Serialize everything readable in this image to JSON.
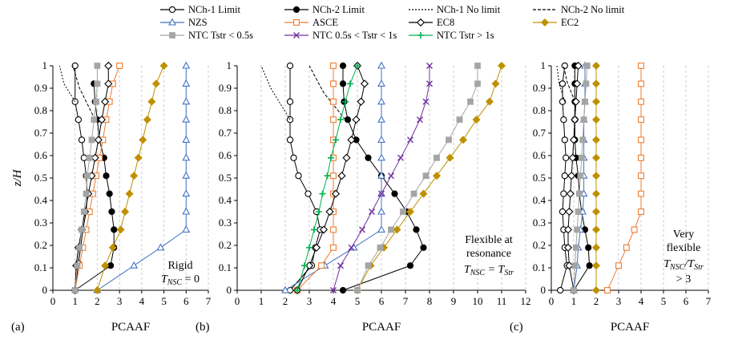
{
  "legend": [
    {
      "label": "NCh-1 Limit",
      "color": "#000000",
      "marker": "circle-open",
      "dash": ""
    },
    {
      "label": "NCh-2 Limit",
      "color": "#000000",
      "marker": "circle-filled",
      "dash": ""
    },
    {
      "label": "NCh-1 No limit",
      "color": "#000000",
      "marker": "none",
      "dash": "2,2"
    },
    {
      "label": "NCh-2 No limit",
      "color": "#000000",
      "marker": "none",
      "dash": "4,2"
    },
    {
      "label": "NZS",
      "color": "#4472c4",
      "marker": "triangle-open",
      "dash": ""
    },
    {
      "label": "ASCE",
      "color": "#ed7d31",
      "marker": "square-open",
      "dash": ""
    },
    {
      "label": "EC8",
      "color": "#000000",
      "marker": "diamond-open",
      "dash": ""
    },
    {
      "label": "EC2",
      "color": "#bf9000",
      "marker": "diamond-filled",
      "dash": ""
    },
    {
      "label": "NTC Tstr < 0.5s",
      "color": "#a5a5a5",
      "marker": "square-filled",
      "dash": ""
    },
    {
      "label": "NTC 0.5s < Tstr < 1s",
      "color": "#7030a0",
      "marker": "x",
      "dash": ""
    },
    {
      "label": "NTC Tstr > 1s",
      "color": "#00b050",
      "marker": "plus",
      "dash": ""
    }
  ],
  "ylabel": "z/H",
  "chart_data": [
    {
      "type": "line",
      "panel_label": "(a)",
      "xlabel": "PCAAF",
      "xlim": [
        0,
        7
      ],
      "xticks": [
        0,
        1,
        2,
        3,
        4,
        5,
        6,
        7
      ],
      "ylim": [
        0,
        1
      ],
      "yticks": [
        0,
        0.1,
        0.2,
        0.3,
        0.4,
        0.5,
        0.6,
        0.7,
        0.8,
        0.9,
        1
      ],
      "grid": "vertical dashed",
      "annotation": {
        "line1": "Rigid",
        "line2_prefix": "T",
        "line2_sub": "NSC",
        "line2_suffix": " = 0"
      },
      "series": [
        {
          "name": "NCh-1 Limit",
          "x": [
            1.0,
            1.15,
            1.25,
            1.35,
            1.5,
            1.55,
            1.5,
            1.4,
            1.3,
            1.15,
            1.0,
            1.0
          ],
          "y": [
            0,
            0.12,
            0.19,
            0.27,
            0.35,
            0.43,
            0.51,
            0.59,
            0.67,
            0.76,
            0.84,
            1.0
          ]
        },
        {
          "name": "NCh-2 Limit",
          "x": [
            1.0,
            2.6,
            2.75,
            2.75,
            2.65,
            2.55,
            2.4,
            2.3,
            2.1,
            2.0,
            1.9,
            1.85
          ],
          "y": [
            0,
            0.11,
            0.19,
            0.27,
            0.35,
            0.43,
            0.51,
            0.59,
            0.67,
            0.76,
            0.84,
            0.92
          ]
        },
        {
          "name": "NCh-1 No limit",
          "x": [
            1.0,
            0.5,
            0.3
          ],
          "y": [
            0.84,
            0.92,
            1.0
          ]
        },
        {
          "name": "NCh-2 No limit",
          "x": [
            1.9,
            1.2,
            0.9
          ],
          "y": [
            0.76,
            0.9,
            1.0
          ]
        },
        {
          "name": "NZS",
          "x": [
            2.0,
            3.65,
            4.85,
            6.0,
            6.0,
            6.0,
            6.0,
            6.0,
            6.0,
            6.0,
            6.0,
            6.0,
            6.0
          ],
          "y": [
            0,
            0.11,
            0.19,
            0.27,
            0.35,
            0.43,
            0.51,
            0.59,
            0.67,
            0.76,
            0.84,
            0.92,
            1.0
          ]
        },
        {
          "name": "ASCE",
          "x": [
            1.0,
            1.2,
            1.35,
            1.5,
            1.65,
            1.8,
            1.95,
            2.1,
            2.25,
            2.4,
            2.55,
            2.7,
            3.0
          ],
          "y": [
            0,
            0.11,
            0.19,
            0.27,
            0.35,
            0.43,
            0.51,
            0.59,
            0.67,
            0.76,
            0.84,
            0.92,
            1.0
          ]
        },
        {
          "name": "EC8",
          "x": [
            1.0,
            1.05,
            1.15,
            1.3,
            1.45,
            1.6,
            1.75,
            1.9,
            2.05,
            2.2,
            2.35,
            2.5,
            2.5
          ],
          "y": [
            0,
            0.11,
            0.19,
            0.27,
            0.35,
            0.43,
            0.51,
            0.59,
            0.67,
            0.76,
            0.84,
            0.92,
            1.0
          ]
        },
        {
          "name": "EC2",
          "x": [
            2.0,
            2.35,
            2.7,
            3.05,
            3.25,
            3.45,
            3.65,
            3.85,
            4.05,
            4.25,
            4.45,
            4.65,
            5.0
          ],
          "y": [
            0,
            0.11,
            0.19,
            0.27,
            0.35,
            0.43,
            0.51,
            0.59,
            0.67,
            0.76,
            0.84,
            0.92,
            1.0
          ]
        },
        {
          "name": "NTC Tstr < 0.5s",
          "x": [
            1.0,
            1.1,
            1.2,
            1.3,
            1.4,
            1.5,
            1.55,
            1.65,
            1.75,
            1.85,
            1.95,
            2.0,
            2.0
          ],
          "y": [
            0,
            0.11,
            0.19,
            0.27,
            0.35,
            0.43,
            0.51,
            0.59,
            0.67,
            0.76,
            0.84,
            0.92,
            1.0
          ]
        }
      ]
    },
    {
      "type": "line",
      "panel_label": "(b)",
      "xlabel": "PCAAF",
      "xlim": [
        0,
        12
      ],
      "xticks": [
        0,
        1,
        2,
        3,
        4,
        5,
        6,
        7,
        8,
        9,
        10,
        11,
        12
      ],
      "ylim": [
        0,
        1
      ],
      "yticks": [
        0,
        0.1,
        0.2,
        0.3,
        0.4,
        0.5,
        0.6,
        0.7,
        0.8,
        0.9,
        1
      ],
      "grid": "vertical dashed",
      "annotation": {
        "line1": "Flexible at",
        "line1b": "resonance",
        "line2_prefix": "T",
        "line2_sub": "NSC",
        "line2_suffix": " = T",
        "line2_sub2": "Str"
      },
      "series": [
        {
          "name": "NCh-1 Limit",
          "x": [
            2.2,
            3.1,
            3.25,
            3.45,
            3.3,
            2.95,
            2.55,
            2.35,
            2.2,
            2.2,
            2.2,
            2.2
          ],
          "y": [
            0,
            0.11,
            0.19,
            0.27,
            0.35,
            0.43,
            0.51,
            0.59,
            0.67,
            0.76,
            0.84,
            1.0
          ]
        },
        {
          "name": "NCh-2 Limit",
          "x": [
            4.4,
            7.2,
            7.75,
            7.45,
            7.05,
            6.55,
            6.0,
            5.45,
            4.95,
            4.6,
            4.45,
            4.4,
            4.4
          ],
          "y": [
            0,
            0.11,
            0.19,
            0.27,
            0.35,
            0.43,
            0.51,
            0.59,
            0.67,
            0.76,
            0.84,
            0.92,
            1.0
          ]
        },
        {
          "name": "NCh-1 No limit",
          "x": [
            2.2,
            1.4,
            1.0
          ],
          "y": [
            0.76,
            0.9,
            1.0
          ]
        },
        {
          "name": "NCh-2 No limit",
          "x": [
            4.5,
            3.6,
            3.0
          ],
          "y": [
            0.76,
            0.88,
            1.0
          ]
        },
        {
          "name": "NZS",
          "x": [
            2.0,
            3.65,
            4.85,
            6.0,
            6.0,
            6.0,
            6.0,
            6.0,
            6.0,
            6.0,
            6.0,
            6.0,
            6.0
          ],
          "y": [
            0,
            0.11,
            0.19,
            0.27,
            0.35,
            0.43,
            0.51,
            0.59,
            0.67,
            0.76,
            0.84,
            0.92,
            1.0
          ]
        },
        {
          "name": "ASCE",
          "x": [
            2.5,
            3.5,
            4.0,
            4.0,
            4.0,
            4.0,
            4.0,
            4.0,
            4.0,
            4.0,
            4.0,
            4.0,
            4.0
          ],
          "y": [
            0,
            0.11,
            0.19,
            0.27,
            0.35,
            0.43,
            0.51,
            0.59,
            0.67,
            0.76,
            0.84,
            0.92,
            1.0
          ]
        },
        {
          "name": "EC8",
          "x": [
            2.5,
            3.0,
            3.3,
            3.6,
            3.85,
            4.1,
            4.35,
            4.55,
            4.75,
            4.95,
            5.15,
            5.3,
            5.0
          ],
          "y": [
            0,
            0.11,
            0.19,
            0.27,
            0.35,
            0.43,
            0.51,
            0.59,
            0.67,
            0.76,
            0.84,
            0.92,
            1.0
          ]
        },
        {
          "name": "EC2",
          "x": [
            5.0,
            5.55,
            6.1,
            6.65,
            7.2,
            7.75,
            8.3,
            8.85,
            9.4,
            9.95,
            10.5,
            10.75,
            11.0
          ],
          "y": [
            0,
            0.11,
            0.19,
            0.27,
            0.35,
            0.43,
            0.51,
            0.59,
            0.67,
            0.76,
            0.84,
            0.92,
            1.0
          ]
        },
        {
          "name": "NTC Tstr < 0.5s",
          "x": [
            5.0,
            5.45,
            5.95,
            6.4,
            6.9,
            7.35,
            7.85,
            8.3,
            8.8,
            9.25,
            9.7,
            10.0,
            10.0
          ],
          "y": [
            0,
            0.11,
            0.19,
            0.27,
            0.35,
            0.43,
            0.51,
            0.59,
            0.67,
            0.76,
            0.84,
            0.92,
            1.0
          ]
        },
        {
          "name": "NTC 0.5s < Tstr < 1s",
          "x": [
            4.0,
            4.3,
            4.75,
            5.2,
            5.6,
            6.0,
            6.4,
            6.8,
            7.2,
            7.6,
            7.85,
            8.0,
            8.0
          ],
          "y": [
            0,
            0.11,
            0.19,
            0.27,
            0.35,
            0.43,
            0.51,
            0.59,
            0.67,
            0.76,
            0.84,
            0.92,
            1.0
          ]
        },
        {
          "name": "NTC Tstr > 1s",
          "x": [
            2.5,
            2.8,
            3.0,
            3.2,
            3.4,
            3.55,
            3.75,
            3.9,
            4.1,
            4.3,
            4.5,
            4.7,
            5.0
          ],
          "y": [
            0,
            0.11,
            0.19,
            0.27,
            0.35,
            0.43,
            0.51,
            0.59,
            0.67,
            0.76,
            0.84,
            0.92,
            1.0
          ]
        }
      ]
    },
    {
      "type": "line",
      "panel_label": "(c)",
      "xlabel": "PCAAF",
      "xlim": [
        0,
        7
      ],
      "xticks": [
        0,
        1,
        2,
        3,
        4,
        5,
        6,
        7
      ],
      "ylim": [
        0,
        1
      ],
      "yticks": [
        0,
        0.1,
        0.2,
        0.3,
        0.4,
        0.5,
        0.6,
        0.7,
        0.8,
        0.9,
        1
      ],
      "grid": "vertical dashed",
      "annotation": {
        "line1": "Very",
        "line1b": "flexible",
        "line2_prefix": "T",
        "line2_sub": "NSC",
        "line2_suffix": "/T",
        "line2_sub2": "Str",
        "line3": "> 3"
      },
      "series": [
        {
          "name": "NCh-1 Limit",
          "x": [
            0.4,
            0.7,
            0.6,
            0.55,
            0.5,
            0.55,
            0.6,
            0.65,
            0.6,
            0.55,
            0.5,
            0.5,
            0.6
          ],
          "y": [
            0,
            0.11,
            0.19,
            0.27,
            0.35,
            0.43,
            0.51,
            0.59,
            0.67,
            0.76,
            0.84,
            0.92,
            1.0
          ]
        },
        {
          "name": "NCh-2 Limit",
          "x": [
            1.0,
            1.7,
            1.65,
            1.5,
            1.35,
            1.25,
            1.2,
            1.1,
            1.05,
            1.05,
            1.05,
            1.05,
            1.05
          ],
          "y": [
            0,
            0.11,
            0.19,
            0.27,
            0.35,
            0.43,
            0.51,
            0.59,
            0.67,
            0.76,
            0.84,
            0.92,
            1.0
          ]
        },
        {
          "name": "NCh-1 No limit",
          "x": [
            0.6,
            0.35,
            0.25
          ],
          "y": [
            0.84,
            0.92,
            1.0
          ]
        },
        {
          "name": "NCh-2 No limit",
          "x": [
            1.05,
            0.7,
            0.55
          ],
          "y": [
            0.84,
            0.93,
            1.0
          ]
        },
        {
          "name": "NZS",
          "x": [
            1.0,
            1.15,
            1.2,
            1.3,
            1.4,
            1.45,
            1.45,
            1.45,
            1.45,
            1.45,
            1.5,
            1.5,
            1.5
          ],
          "y": [
            0,
            0.11,
            0.19,
            0.27,
            0.35,
            0.43,
            0.51,
            0.59,
            0.67,
            0.76,
            0.84,
            0.92,
            1.0
          ]
        },
        {
          "name": "ASCE",
          "x": [
            2.5,
            3.0,
            3.35,
            3.7,
            4.0,
            4.0,
            4.0,
            4.0,
            4.0,
            4.0,
            4.0,
            4.0,
            4.0
          ],
          "y": [
            0,
            0.11,
            0.19,
            0.27,
            0.35,
            0.43,
            0.51,
            0.59,
            0.67,
            0.76,
            0.84,
            0.92,
            1.0
          ]
        },
        {
          "name": "EC8",
          "x": [
            1.0,
            0.8,
            0.75,
            0.75,
            0.8,
            0.85,
            0.9,
            0.95,
            1.0,
            1.05,
            1.1,
            1.15,
            1.2
          ],
          "y": [
            0,
            0.11,
            0.19,
            0.27,
            0.35,
            0.43,
            0.51,
            0.59,
            0.67,
            0.76,
            0.84,
            0.92,
            1.0
          ]
        },
        {
          "name": "EC2",
          "x": [
            2.0,
            2.0,
            2.0,
            2.0,
            2.0,
            2.0,
            2.0,
            2.0,
            2.0,
            2.0,
            2.0,
            2.0,
            2.0
          ],
          "y": [
            0,
            0.11,
            0.19,
            0.27,
            0.35,
            0.43,
            0.51,
            0.59,
            0.67,
            0.76,
            0.84,
            0.92,
            1.0
          ]
        },
        {
          "name": "NTC Tstr < 0.5s",
          "x": [
            1.0,
            1.05,
            1.1,
            1.15,
            1.2,
            1.25,
            1.3,
            1.35,
            1.4,
            1.45,
            1.5,
            1.55,
            1.6
          ],
          "y": [
            0,
            0.11,
            0.19,
            0.27,
            0.35,
            0.43,
            0.51,
            0.59,
            0.67,
            0.76,
            0.84,
            0.92,
            1.0
          ]
        }
      ]
    }
  ]
}
